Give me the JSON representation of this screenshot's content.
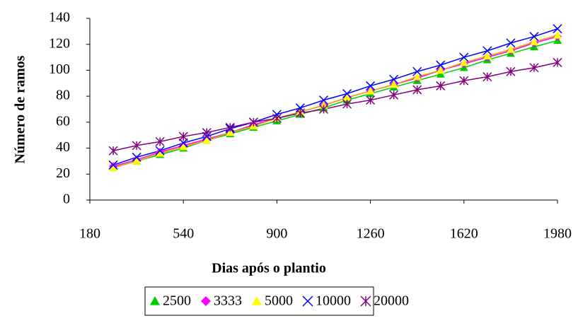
{
  "chart_data": {
    "type": "line",
    "x_label": "Dias após o plantio",
    "y_label": "Número de ramos",
    "x": [
      270,
      360,
      450,
      540,
      630,
      720,
      810,
      900,
      990,
      1080,
      1170,
      1260,
      1350,
      1440,
      1530,
      1620,
      1710,
      1800,
      1890,
      1980
    ],
    "series": [
      {
        "name": "2500",
        "color": "#00cc00",
        "marker": "triangle",
        "values": [
          25,
          30,
          35,
          40,
          46,
          51,
          56,
          61,
          66,
          71,
          77,
          82,
          87,
          92,
          97,
          102,
          108,
          113,
          118,
          123
        ]
      },
      {
        "name": "3333",
        "color": "#ff00ff",
        "marker": "diamond",
        "values": [
          26,
          31,
          37,
          42,
          47,
          52,
          58,
          63,
          68,
          73,
          79,
          84,
          89,
          94,
          100,
          105,
          110,
          115,
          121,
          126
        ]
      },
      {
        "name": "5000",
        "color": "#ffff00",
        "marker": "triangle",
        "values": [
          25,
          30,
          36,
          41,
          46,
          52,
          57,
          63,
          68,
          73,
          79,
          84,
          89,
          95,
          100,
          106,
          111,
          116,
          122,
          127
        ]
      },
      {
        "name": "10000",
        "color": "#0000ff",
        "marker": "x",
        "values": [
          27,
          33,
          38,
          44,
          49,
          55,
          60,
          66,
          71,
          77,
          82,
          88,
          93,
          99,
          104,
          110,
          115,
          121,
          126,
          132
        ]
      },
      {
        "name": "20000",
        "color": "#800080",
        "marker": "star",
        "values": [
          38,
          42,
          45,
          49,
          52,
          56,
          60,
          63,
          67,
          70,
          74,
          77,
          81,
          85,
          88,
          92,
          95,
          99,
          102,
          106
        ]
      }
    ],
    "xlim": [
      180,
      1980
    ],
    "xticks": [
      180,
      540,
      900,
      1260,
      1620,
      1980
    ],
    "ylim": [
      0,
      140
    ],
    "yticks": [
      0,
      20,
      40,
      60,
      80,
      100,
      120,
      140
    ],
    "legend": "bottom"
  }
}
